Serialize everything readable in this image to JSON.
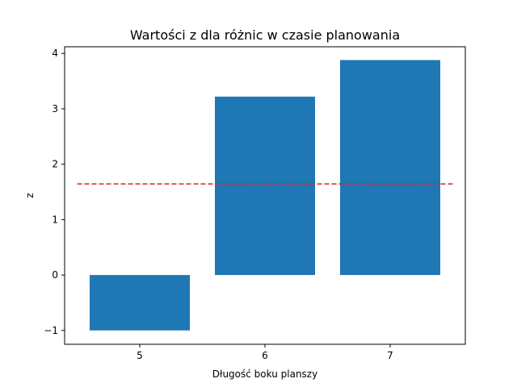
{
  "chart_data": {
    "type": "bar",
    "title": "Wartości z dla różnic w czasie planowania",
    "xlabel": "Długość boku planszy",
    "ylabel": "z",
    "categories": [
      "5",
      "6",
      "7"
    ],
    "x": [
      5,
      6,
      7
    ],
    "values": [
      -1.0,
      3.22,
      3.88
    ],
    "bar_color": "#1f77b4",
    "reference_line": {
      "y": 1.645,
      "color": "#d62728",
      "style": "dashed"
    },
    "xlim": [
      4.4,
      7.6
    ],
    "ylim": [
      -1.25,
      4.12
    ],
    "xticks": [
      5,
      6,
      7
    ],
    "yticks": [
      -1,
      0,
      1,
      2,
      3,
      4
    ],
    "ytick_labels": [
      "−1",
      "0",
      "1",
      "2",
      "3",
      "4"
    ],
    "grid": false,
    "legend": "none"
  }
}
